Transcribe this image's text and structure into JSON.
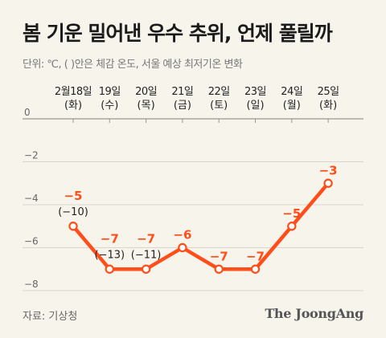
{
  "title": "봄 기운 밀어낸 우수 추위, 언제 풀릴까",
  "subtitle": "단위: ℃, ( )안은 체감 온도, 서울 예상 최저기온 변화",
  "source": "자료: 기상청",
  "brand": "The JoongAng",
  "colors": {
    "line": "#ff4e1a",
    "label": "#ff4e1a",
    "background": "#f7f4ec",
    "grid": "#d9d6cf"
  },
  "chart_data": {
    "type": "line",
    "categories": [
      "2월18일",
      "19일",
      "20일",
      "21일",
      "22일",
      "23일",
      "24일",
      "25일"
    ],
    "weekdays": [
      "(화)",
      "(수)",
      "(목)",
      "(금)",
      "(토)",
      "(일)",
      "(월)",
      "(화)"
    ],
    "values": [
      -5,
      -7,
      -7,
      -6,
      -7,
      -7,
      -5,
      -3
    ],
    "value_labels": [
      "−5",
      "−7",
      "−7",
      "−6",
      "−7",
      "−7",
      "−5",
      "−3"
    ],
    "feels_like": [
      "(−10)",
      "(−13)",
      "(−11)",
      null,
      null,
      null,
      null,
      null
    ],
    "yticks": [
      0,
      -2,
      -4,
      -6,
      -8
    ],
    "ytick_labels": [
      "0",
      "−2",
      "−4",
      "−6",
      "−8"
    ],
    "ylim": [
      -8,
      0
    ],
    "grid": true,
    "xaxis_position": "top"
  }
}
